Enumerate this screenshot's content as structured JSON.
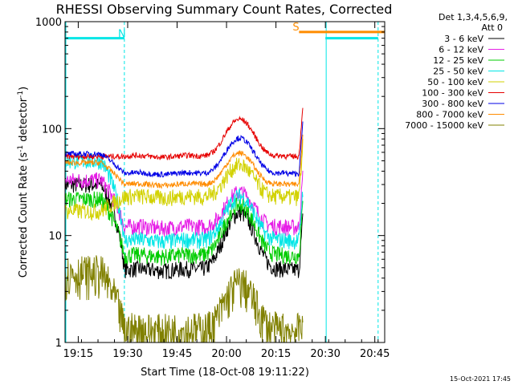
{
  "chart_data": {
    "type": "line",
    "title": "RHESSI Observing Summary Count Rates, Corrected",
    "xlabel": "Start Time (18-Oct-08 19:11:22)",
    "ylabel_main": "Corrected Count Rate (s",
    "ylabel_sup1": "-1",
    "ylabel_mid": " detector",
    "ylabel_sup2": "-1",
    "ylabel_end": ")",
    "y_scale": "log",
    "ylim": [
      1,
      1000
    ],
    "xlim_minutes": [
      19.1833,
      20.8
    ],
    "x_ticks": [
      {
        "m": 19.25,
        "label": "19:15"
      },
      {
        "m": 19.5,
        "label": "19:30"
      },
      {
        "m": 19.75,
        "label": "19:45"
      },
      {
        "m": 20.0,
        "label": "20:00"
      },
      {
        "m": 20.25,
        "label": "20:15"
      },
      {
        "m": 20.5,
        "label": "20:30"
      },
      {
        "m": 20.75,
        "label": "20:45"
      }
    ],
    "y_ticks": [
      {
        "v": 1,
        "label": "1"
      },
      {
        "v": 10,
        "label": "10"
      },
      {
        "v": 100,
        "label": "100"
      },
      {
        "v": 1000,
        "label": "1000"
      }
    ],
    "legend": {
      "position": "right",
      "header1": "Det 1,3,4,5,6,9,",
      "header2": "Att 0"
    },
    "series": [
      {
        "name": "3 - 6 keV",
        "color": "#000000",
        "start": 30,
        "base": 4.8,
        "peak": 16,
        "end": 4.8
      },
      {
        "name": "6 - 12 keV",
        "color": "#e61ee6",
        "start": 33,
        "base": 12,
        "peak": 25,
        "end": 12
      },
      {
        "name": "12 - 25 keV",
        "color": "#00cc00",
        "start": 22,
        "base": 6.5,
        "peak": 19,
        "end": 6.5
      },
      {
        "name": "25 - 50 keV",
        "color": "#00e6e6",
        "start": 50,
        "base": 9,
        "peak": 23,
        "end": 9
      },
      {
        "name": "50 - 100 keV",
        "color": "#d2d200",
        "start": 17,
        "base": 23,
        "peak": 45,
        "end": 23
      },
      {
        "name": "100 - 300 keV",
        "color": "#e60000",
        "start": 55,
        "base": 55,
        "peak": 120,
        "end": 55
      },
      {
        "name": "300 - 800 keV",
        "color": "#0000e6",
        "start": 58,
        "base": 38,
        "peak": 80,
        "end": 38
      },
      {
        "name": "800 - 7000 keV",
        "color": "#ff8c00",
        "start": 48,
        "base": 30,
        "peak": 58,
        "end": 30
      },
      {
        "name": "7000 - 15000 keV",
        "color": "#808000",
        "start": 4.5,
        "base": 1.3,
        "peak": 3.5,
        "end": 1.3
      }
    ],
    "annotations": [
      {
        "label": "N",
        "color": "#00e6e6",
        "from": 19.1833,
        "to": 19.4833,
        "level": 700
      },
      {
        "label": "S",
        "color": "#ff8c00",
        "from": 20.3667,
        "to": 20.8,
        "level": 800
      }
    ],
    "eclipse_segments": [
      [
        19.1833,
        19.4833
      ],
      [
        20.5,
        20.7667
      ]
    ],
    "timestamp": "15-Oct-2021 17:45"
  }
}
